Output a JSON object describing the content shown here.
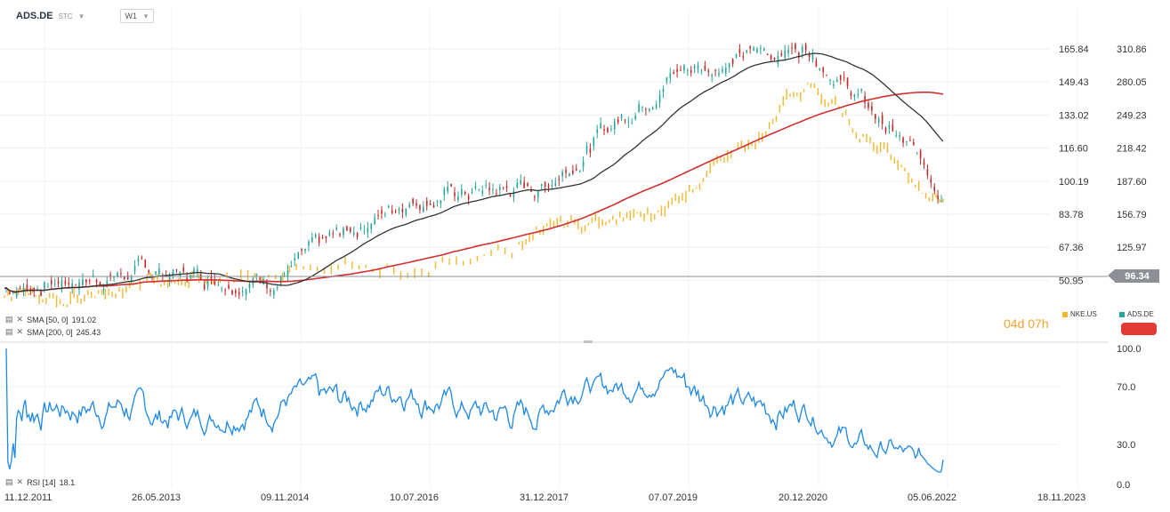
{
  "header": {
    "symbol": "ADS.DE",
    "asset_type": "STC",
    "timeframe": "W1"
  },
  "indicators": {
    "sma50_label": "SMA [50, 0]",
    "sma50_value": "191.02",
    "sma200_label": "SMA [200, 0]",
    "sma200_value": "245.43",
    "rsi_label": "RSI [14]",
    "rsi_value": "18.1"
  },
  "countdown": "04d 07h",
  "current_price": "96.34",
  "legend": {
    "nke": "NKE.US",
    "ads": "ADS.DE"
  },
  "colors": {
    "bull": "#26a69a",
    "bear": "#c62828",
    "overlay": "#f2b82e",
    "sma50": "#333333",
    "sma200": "#d32f2f",
    "rsi": "#1e88e5",
    "price_line": "#8a9096",
    "countdown": "#f2a42e"
  },
  "chart_data": [
    {
      "type": "candlestick",
      "series": [
        {
          "name": "ADS.DE",
          "dates": [
            "11.12.2011",
            "26.05.2013",
            "09.11.2014",
            "10.07.2016",
            "31.12.2017",
            "07.07.2019",
            "20.12.2020",
            "05.06.2022"
          ],
          "approx_close": [
            47,
            55,
            52,
            92,
            97,
            155,
            168,
            96.34
          ]
        },
        {
          "name": "NKE.US",
          "approx_close_right_axis": [
            78,
            92,
            104,
            108,
            138,
            165,
            280,
            170
          ]
        },
        {
          "name": "SMA [50, 0]",
          "last": 191.02
        },
        {
          "name": "SMA [200, 0]",
          "last": 245.43
        }
      ],
      "left_axis_ticks": [
        "165.84",
        "149.43",
        "133.02",
        "116.60",
        "100.19",
        "83.78",
        "67.36",
        "50.95"
      ],
      "right_axis_ticks": [
        "310.86",
        "280.05",
        "249.23",
        "218.42",
        "187.60",
        "156.79",
        "125.97"
      ],
      "x_axis_ticks": [
        "11.12.2011",
        "26.05.2013",
        "09.11.2014",
        "10.07.2016",
        "31.12.2017",
        "07.07.2019",
        "20.12.2020",
        "05.06.2022",
        "18.11.2023"
      ],
      "last_price": 96.34
    },
    {
      "type": "line",
      "series": [
        {
          "name": "RSI [14]",
          "last": 18.1
        }
      ],
      "ylim": [
        0,
        100
      ],
      "y_ticks": [
        "100.0",
        "70.0",
        "30.0",
        "0.0"
      ]
    }
  ]
}
